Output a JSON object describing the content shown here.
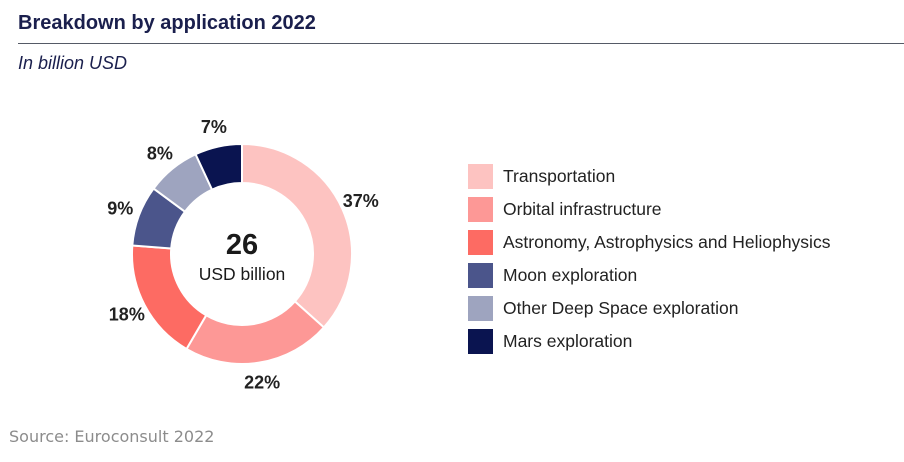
{
  "header": {
    "title": "Breakdown by application 2022",
    "subtitle": "In billion USD"
  },
  "chart_data": {
    "type": "pie",
    "subtype": "donut",
    "title": "Breakdown by application 2022",
    "unit": "In billion USD",
    "center_value": "26",
    "center_label": "USD billion",
    "categories": [
      "Transportation",
      "Orbital infrastructure",
      "Astronomy, Astrophysics and Heliophysics",
      "Moon exploration",
      "Other Deep Space exploration",
      "Mars exploration"
    ],
    "values": [
      37,
      22,
      18,
      9,
      8,
      7
    ],
    "labels": [
      "37%",
      "22%",
      "18%",
      "9%",
      "8%",
      "7%"
    ],
    "colors": [
      "#fdc3c1",
      "#fd9896",
      "#fd6b63",
      "#4b558b",
      "#9ea4bf",
      "#0a1450"
    ],
    "legend_position": "right"
  },
  "footer": {
    "source": "Source: Euroconsult 2022"
  }
}
